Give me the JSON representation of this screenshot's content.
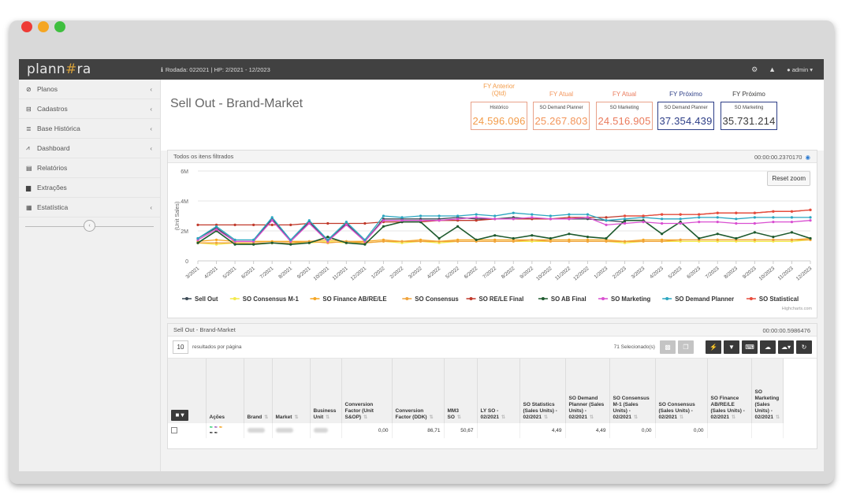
{
  "app": {
    "logo_left": "plann",
    "logo_mark": "#",
    "logo_right": "ra",
    "run_info": "Rodada: 022021 | HP: 2/2021 - 12/2023",
    "user": "admin"
  },
  "sidebar": {
    "items": [
      {
        "icon": "⊘",
        "label": "Planos",
        "caret": "‹"
      },
      {
        "icon": "⊟",
        "label": "Cadastros",
        "caret": "‹"
      },
      {
        "icon": "≣",
        "label": "Base Histórica",
        "caret": "‹"
      },
      {
        "icon": "⩘",
        "label": "Dashboard",
        "caret": "‹"
      },
      {
        "icon": "▤",
        "label": "Relatórios",
        "caret": ""
      },
      {
        "icon": "▆",
        "label": "Extrações",
        "caret": ""
      },
      {
        "icon": "▦",
        "label": "Estatística",
        "caret": "‹"
      }
    ],
    "collapse_icon": "‹"
  },
  "page": {
    "title": "Sell Out - Brand-Market"
  },
  "kpis": [
    {
      "label": "FY Anterior (Qtd)",
      "sub": "Histórico",
      "value": "24.596.096",
      "color": "#f39c4a"
    },
    {
      "label": "FY Atual",
      "sub": "SO Demand Planner",
      "value": "25.267.803",
      "color": "#f3955a"
    },
    {
      "label": "FY Atual",
      "sub": "SO Marketing",
      "value": "24.516.905",
      "color": "#ea7a5b"
    },
    {
      "label": "FY Próximo",
      "sub": "SO Demand Planner",
      "value": "37.354.439",
      "color": "#2d3e87"
    },
    {
      "label": "FY Próximo",
      "sub": "SO Marketing",
      "value": "35.731.214",
      "color": "#3a3a3a"
    }
  ],
  "chart_panel": {
    "title": "Todos os itens filtrados",
    "time": "00:00:00.2370170",
    "reset_label": "Reset zoom",
    "credits": "Highcharts.com"
  },
  "chart_data": {
    "type": "line",
    "xlabel": "",
    "ylabel": "(Unit Sales)",
    "ylim": [
      0,
      6000000
    ],
    "yticks": [
      "0",
      "2M",
      "4M",
      "6M"
    ],
    "categories": [
      "3/2021",
      "4/2021",
      "5/2021",
      "6/2021",
      "7/2021",
      "8/2021",
      "9/2021",
      "10/2021",
      "11/2021",
      "12/2021",
      "1/2022",
      "2/2022",
      "3/2022",
      "4/2022",
      "5/2022",
      "6/2022",
      "7/2022",
      "8/2022",
      "9/2022",
      "10/2022",
      "11/2022",
      "12/2022",
      "1/2023",
      "2/2023",
      "3/2023",
      "4/2023",
      "5/2023",
      "6/2023",
      "7/2023",
      "8/2023",
      "9/2023",
      "10/2023",
      "11/2023",
      "12/2023"
    ],
    "series": [
      {
        "name": "Sell Out",
        "color": "#3c4a56",
        "values": [
          1500000,
          2200000,
          1300000,
          1300000,
          2800000,
          1300000,
          2600000,
          1300000,
          2500000,
          1300000,
          2800000,
          2800000,
          2800000,
          2800000,
          2900000,
          2800000,
          2800000,
          2900000,
          2800000,
          2800000,
          2800000,
          2800000,
          2700000,
          2600000,
          null,
          null,
          null,
          null,
          null,
          null,
          null,
          null,
          null,
          null
        ]
      },
      {
        "name": "SO Consensus M-1",
        "color": "#f3e94a",
        "values": [
          1200000,
          1100000,
          1200000,
          1100000,
          1200000,
          1200000,
          1200000,
          1300000,
          1200000,
          1200000,
          1300000,
          1200000,
          1300000,
          1200000,
          1300000,
          1300000,
          1300000,
          1300000,
          1300000,
          1300000,
          1300000,
          1300000,
          1300000,
          1200000,
          1300000,
          1300000,
          1300000,
          1300000,
          1300000,
          1300000,
          1300000,
          1300000,
          1300000,
          1400000
        ]
      },
      {
        "name": "SO Finance AB/RE/LE",
        "color": "#f5a623",
        "values": [
          1300000,
          1400000,
          1300000,
          1300000,
          1300000,
          1300000,
          1300000,
          1400000,
          1300000,
          1300000,
          1400000,
          1300000,
          1400000,
          1300000,
          1400000,
          1400000,
          1400000,
          1400000,
          1400000,
          1400000,
          1400000,
          1400000,
          1400000,
          1300000,
          1400000,
          1400000,
          1400000,
          1400000,
          1400000,
          1400000,
          1400000,
          1400000,
          1400000,
          1500000
        ]
      },
      {
        "name": "SO Consensus",
        "color": "#f0a33c",
        "values": [
          1200000,
          1200000,
          1200000,
          1200000,
          1200000,
          1200000,
          1300000,
          1200000,
          1300000,
          1200000,
          1300000,
          1300000,
          1300000,
          1300000,
          1300000,
          1300000,
          1300000,
          1300000,
          1400000,
          1300000,
          1300000,
          1300000,
          1300000,
          1300000,
          1300000,
          1300000,
          1400000,
          1400000,
          1400000,
          1400000,
          1400000,
          1400000,
          1400000,
          1400000
        ]
      },
      {
        "name": "SO RE/LE Final",
        "color": "#c0392b",
        "values": [
          2400000,
          2400000,
          2400000,
          2400000,
          2400000,
          2400000,
          2500000,
          2500000,
          2500000,
          2500000,
          2600000,
          2600000,
          2600000,
          2700000,
          2700000,
          2700000,
          2800000,
          2800000,
          2800000,
          2800000,
          2900000,
          2900000,
          2900000,
          3000000,
          3000000,
          3100000,
          3100000,
          3100000,
          3200000,
          3200000,
          3200000,
          3300000,
          3300000,
          3400000
        ]
      },
      {
        "name": "SO AB Final",
        "color": "#1e5a2e",
        "values": [
          1200000,
          2000000,
          1100000,
          1100000,
          1200000,
          1100000,
          1200000,
          1600000,
          1200000,
          1100000,
          2300000,
          2600000,
          2600000,
          1500000,
          2300000,
          1400000,
          1700000,
          1500000,
          1700000,
          1500000,
          1800000,
          1600000,
          1500000,
          2700000,
          2700000,
          1800000,
          2600000,
          1500000,
          1800000,
          1500000,
          1900000,
          1600000,
          1900000,
          1500000
        ]
      },
      {
        "name": "SO Marketing",
        "color": "#d94fd1",
        "values": [
          1400000,
          2100000,
          1300000,
          1300000,
          2700000,
          1300000,
          2500000,
          1300000,
          2400000,
          1300000,
          2700000,
          2700000,
          2700000,
          2700000,
          2800000,
          2900000,
          2800000,
          2800000,
          2900000,
          2800000,
          2800000,
          2900000,
          2400000,
          2500000,
          2600000,
          2500000,
          2500000,
          2600000,
          2600000,
          2500000,
          2500000,
          2600000,
          2600000,
          2700000
        ]
      },
      {
        "name": "SO Demand Planner",
        "color": "#2aa6c0",
        "values": [
          1500000,
          2300000,
          1400000,
          1400000,
          2900000,
          1400000,
          2700000,
          1400000,
          2600000,
          1400000,
          3000000,
          2900000,
          3000000,
          3000000,
          3000000,
          3100000,
          3000000,
          3200000,
          3100000,
          3000000,
          3100000,
          3100000,
          2700000,
          2800000,
          2900000,
          2800000,
          2800000,
          2900000,
          2900000,
          2800000,
          2900000,
          2900000,
          2900000,
          2900000
        ]
      },
      {
        "name": "SO Statistical",
        "color": "#e74c3c",
        "values": [
          null,
          null,
          null,
          null,
          null,
          null,
          null,
          null,
          null,
          null,
          null,
          null,
          null,
          null,
          null,
          null,
          null,
          null,
          null,
          null,
          null,
          null,
          null,
          3000000,
          3000000,
          3100000,
          3100000,
          3100000,
          3200000,
          3200000,
          3200000,
          3300000,
          3300000,
          3400000
        ]
      }
    ]
  },
  "table_panel": {
    "title": "Sell Out - Brand-Market",
    "time": "00:00:00.5986476",
    "page_size": "10",
    "per_page_label": "resultados por página",
    "selected": "71 Selecionado(s)",
    "headers": [
      "Ações",
      "Brand",
      "Market",
      "Business Unit",
      "Conversion Factor (Unit S&OP)",
      "Conversion Factor (DDK)",
      "MM3 SO",
      "LY SO - 02/2021",
      "SO Statistics (Sales Units) - 02/2021",
      "SO Demand Planner (Sales Units) - 02/2021",
      "SO Consensus M-1 (Sales Units) - 02/2021",
      "SO Consensus (Sales Units) - 02/2021",
      "SO Finance AB/RE/LE (Sales Units) - 02/2021",
      "SO Marketing (Sales Units) - 02/2021"
    ],
    "row": [
      "",
      "",
      "",
      "",
      "0,00",
      "86,71",
      "50,67",
      "",
      "4,49",
      "4,49",
      "0,00",
      "0,00",
      "",
      ""
    ]
  }
}
